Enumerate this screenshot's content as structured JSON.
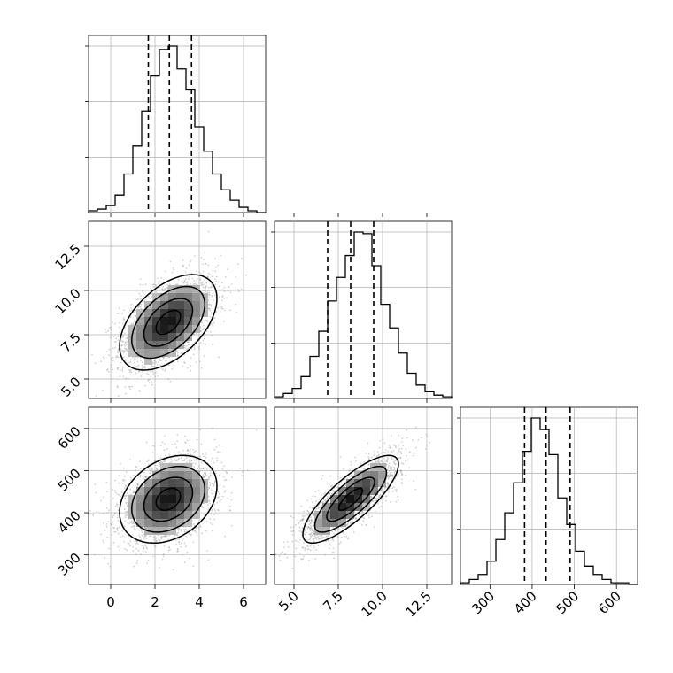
{
  "chart_data": {
    "type": "corner",
    "grid": true,
    "variables": [
      {
        "name": "",
        "range": [
          -1.0,
          7.0
        ],
        "ticks": [
          "0",
          "2",
          "4",
          "6"
        ],
        "quantiles": [
          1.7,
          2.65,
          3.65
        ],
        "hist": [
          1,
          2,
          4,
          10,
          22,
          38,
          58,
          78,
          93,
          95,
          82,
          70,
          49,
          35,
          22,
          13,
          7,
          3,
          1,
          0
        ]
      },
      {
        "name": "",
        "range": [
          3.9,
          13.9
        ],
        "ticks": [
          "5.0",
          "7.5",
          "10.0",
          "12.5"
        ],
        "quantiles": [
          6.9,
          8.2,
          9.5
        ],
        "hist": [
          1,
          3,
          6,
          13,
          25,
          40,
          58,
          72,
          85,
          99,
          98,
          79,
          56,
          42,
          27,
          15,
          8,
          4,
          2,
          1
        ]
      },
      {
        "name": "",
        "range": [
          230.0,
          650.0
        ],
        "ticks": [
          "300",
          "400",
          "500",
          "600"
        ],
        "quantiles": [
          382,
          433,
          490
        ],
        "hist": [
          1,
          3,
          6,
          14,
          27,
          43,
          61,
          80,
          100,
          93,
          78,
          52,
          36,
          20,
          11,
          6,
          3,
          1,
          1,
          0
        ]
      }
    ],
    "y_tick_labels": {
      "row1": [
        "5.0",
        "7.5",
        "10.0",
        "12.5"
      ],
      "row2": [
        "300",
        "400",
        "500",
        "600"
      ]
    },
    "pairs": [
      {
        "x": 0,
        "y": 1,
        "mean": [
          2.6,
          8.2
        ],
        "sd": [
          1.1,
          1.35
        ],
        "rho": 0.5
      },
      {
        "x": 0,
        "y": 2,
        "mean": [
          2.6,
          432
        ],
        "sd": [
          1.1,
          52
        ],
        "rho": 0.3
      },
      {
        "x": 1,
        "y": 2,
        "mean": [
          8.2,
          432
        ],
        "sd": [
          1.35,
          52
        ],
        "rho": 0.8
      }
    ],
    "contour_levels": [
      0.5,
      1.0,
      1.5,
      2.0
    ],
    "colors": {
      "hist": "#000000",
      "points": "#9a9a9a",
      "grid": "#b0b0b0",
      "contour": "#000000"
    }
  }
}
